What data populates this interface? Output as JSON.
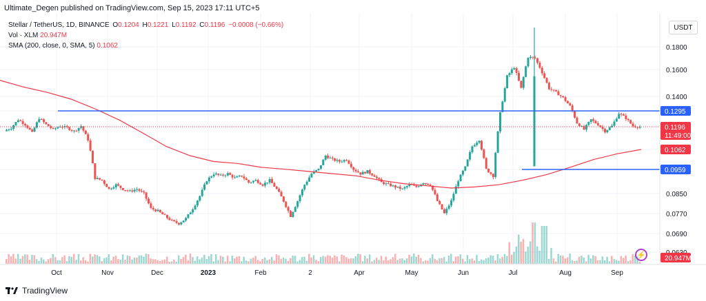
{
  "header": {
    "text": "Ultimate_Degen published on TradingView.com, Sep 15, 2023 17:11 UTC+5"
  },
  "legend": {
    "symbol": "Stellar / TetherUS, 1D, BINANCE",
    "o_label": "O",
    "o": "0.1204",
    "h_label": "H",
    "h": "0.1221",
    "l_label": "L",
    "l": "0.1192",
    "c_label": "C",
    "c": "0.1196",
    "change": "−0.0008 (−0.66%)",
    "vol_label": "Vol · XLM",
    "vol": "20.947M",
    "sma_label": "SMA (200, close, 0, SMA, 5)",
    "sma": "0.1062"
  },
  "currency_button": "USDT",
  "brand": "TradingView",
  "icons": {
    "brand_logo": "tradingview-logo",
    "alert": "lightning-icon"
  },
  "colors": {
    "up": "#26a69a",
    "down": "#ef5350",
    "sma": "#f23645",
    "level": "#2962ff",
    "price": "#f23645"
  },
  "chart_data": {
    "type": "candlestick",
    "y_ticks": [
      "0.1800",
      "0.1600",
      "0.1400",
      "0.0850",
      "0.0770",
      "0.0690",
      "0.0630"
    ],
    "x_ticks": [
      "Oct",
      "Nov",
      "Dec",
      "2023",
      "Feb",
      "2",
      "Apr",
      "May",
      "Jun",
      "Jul",
      "Aug",
      "Sep"
    ],
    "horizontal_levels": [
      {
        "label": "0.1295",
        "value": 0.1295
      },
      {
        "label": "0.0959",
        "value": 0.0959
      }
    ],
    "last_price": {
      "label": "0.1196",
      "countdown": "11:49:00",
      "value": 0.1196
    },
    "sma_value": {
      "label": "0.1062",
      "value": 0.1062
    },
    "volume_label": "20.947M",
    "sma_path_values": [
      0.152,
      0.147,
      0.143,
      0.138,
      0.131,
      0.124,
      0.116,
      0.108,
      0.103,
      0.1,
      0.099,
      0.097,
      0.096,
      0.095,
      0.094,
      0.093,
      0.091,
      0.0895,
      0.0885,
      0.0875,
      0.088,
      0.089,
      0.091,
      0.0935,
      0.097,
      0.101,
      0.104,
      0.1062
    ],
    "close_path_values": [
      0.117,
      0.119,
      0.124,
      0.121,
      0.116,
      0.125,
      0.121,
      0.118,
      0.12,
      0.119,
      0.117,
      0.12,
      0.112,
      0.092,
      0.091,
      0.087,
      0.089,
      0.087,
      0.086,
      0.087,
      0.085,
      0.079,
      0.078,
      0.076,
      0.074,
      0.073,
      0.075,
      0.079,
      0.084,
      0.091,
      0.094,
      0.093,
      0.094,
      0.092,
      0.093,
      0.09,
      0.091,
      0.089,
      0.091,
      0.087,
      0.082,
      0.076,
      0.082,
      0.089,
      0.094,
      0.096,
      0.103,
      0.101,
      0.1,
      0.101,
      0.096,
      0.094,
      0.095,
      0.093,
      0.09,
      0.089,
      0.088,
      0.087,
      0.089,
      0.088,
      0.09,
      0.089,
      0.082,
      0.077,
      0.082,
      0.091,
      0.097,
      0.108,
      0.112,
      0.096,
      0.093,
      0.128,
      0.155,
      0.162,
      0.146,
      0.171,
      0.17,
      0.158,
      0.146,
      0.143,
      0.139,
      0.133,
      0.122,
      0.118,
      0.124,
      0.121,
      0.117,
      0.12,
      0.128,
      0.125,
      0.12,
      0.1196
    ]
  }
}
